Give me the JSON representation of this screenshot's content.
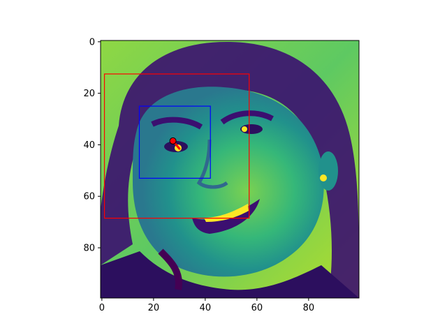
{
  "chart_data": {
    "type": "image",
    "title": "",
    "xlabel": "",
    "ylabel": "",
    "image_size": [
      100,
      100
    ],
    "xlim": [
      -0.5,
      99.5
    ],
    "ylim": [
      99.5,
      -0.5
    ],
    "x_ticks": [
      0,
      20,
      40,
      60,
      80
    ],
    "y_ticks": [
      0,
      20,
      40,
      60,
      80
    ],
    "x_tick_labels": [
      "0",
      "20",
      "40",
      "60",
      "80"
    ],
    "y_tick_labels": [
      "0",
      "20",
      "40",
      "60",
      "80"
    ],
    "colormap": "viridis",
    "image_description_visible": "grayscale face photo rendered with viridis colormap",
    "rectangles": [
      {
        "name": "face-box",
        "color": "#ff0000",
        "x0": 1,
        "y0": 12.5,
        "x1": 57,
        "y1": 68.5
      },
      {
        "name": "eye-box",
        "color": "#0000ff",
        "x0": 14.5,
        "y0": 25,
        "x1": 42,
        "y1": 53
      }
    ],
    "points": [
      {
        "name": "eye-point",
        "color": "#ff0000",
        "x": 27.5,
        "y": 38.5
      },
      {
        "name": "eye-point-inner",
        "color": "#000000",
        "x": 27.5,
        "y": 38.5
      }
    ],
    "gaze_arrow": {
      "color": "#ff0000",
      "x0": 27.5,
      "y0": 38.5,
      "x1": 30,
      "y1": 41.5
    }
  }
}
